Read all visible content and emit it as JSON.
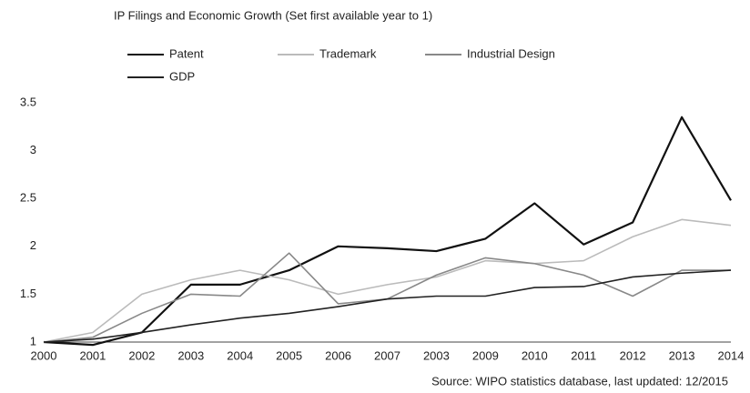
{
  "chart_data": {
    "type": "line",
    "title": "IP Filings and Economic Growth (Set first available year to 1)",
    "source": "Source: WIPO statistics database, last updated: 12/2015",
    "categories": [
      "2000",
      "2001",
      "2002",
      "2003",
      "2004",
      "2005",
      "2006",
      "2007",
      "2003",
      "2009",
      "2010",
      "2011",
      "2012",
      "2013",
      "2014"
    ],
    "series": [
      {
        "name": "Patent",
        "color": "#111111",
        "values": [
          1,
          0.97,
          1.1,
          1.6,
          1.6,
          1.75,
          2.0,
          1.98,
          1.95,
          2.08,
          2.45,
          2.02,
          2.25,
          3.35,
          2.48
        ]
      },
      {
        "name": "Trademark",
        "color": "#bbbbbb",
        "values": [
          1,
          1.1,
          1.5,
          1.65,
          1.75,
          1.65,
          1.5,
          1.6,
          1.68,
          1.85,
          1.82,
          1.85,
          2.1,
          2.28,
          2.22
        ]
      },
      {
        "name": "Industrial Design",
        "color": "#888888",
        "values": [
          1,
          1.05,
          1.3,
          1.5,
          1.48,
          1.93,
          1.4,
          1.45,
          1.7,
          1.88,
          1.82,
          1.7,
          1.48,
          1.75,
          1.75
        ]
      },
      {
        "name": "GDP",
        "color": "#222222",
        "values": [
          1,
          1.03,
          1.1,
          1.18,
          1.25,
          1.3,
          1.37,
          1.45,
          1.48,
          1.48,
          1.57,
          1.58,
          1.68,
          1.72,
          1.75
        ]
      }
    ],
    "ylim": [
      1,
      3.5
    ],
    "yticks": [
      1,
      1.5,
      2,
      2.5,
      3,
      3.5
    ],
    "grid": false
  }
}
